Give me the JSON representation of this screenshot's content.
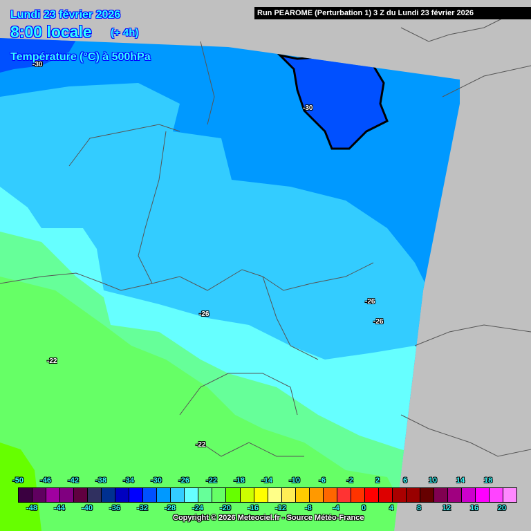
{
  "header": {
    "date": "Lundi 23 février 2026",
    "time": "8:00 locale",
    "offset": "(+ 4h)",
    "parameter": "Température (°C) à 500hPa",
    "run": "Run PEAROME (Perturbation 1) 3 Z du Lundi 23 février 2026"
  },
  "contour_labels": [
    "-30",
    "-30",
    "-26",
    "-26",
    "-26",
    "-22",
    "-22"
  ],
  "legend": {
    "values": [
      -50,
      -48,
      -46,
      -44,
      -42,
      -40,
      -38,
      -36,
      -34,
      -32,
      -30,
      -28,
      -26,
      -24,
      -22,
      -20,
      -18,
      -16,
      -14,
      -12,
      -10,
      -8,
      -6,
      -4,
      -2,
      0,
      2,
      4,
      6,
      8,
      10,
      12,
      14,
      16,
      18,
      20
    ],
    "colors": [
      "#3a0040",
      "#600060",
      "#a000a0",
      "#800080",
      "#600040",
      "#303060",
      "#003090",
      "#0000c0",
      "#0000ff",
      "#0050ff",
      "#0099ff",
      "#33ccff",
      "#66ffff",
      "#66ff99",
      "#66ff66",
      "#66ff00",
      "#ccff00",
      "#ffff00",
      "#ffff88",
      "#ffee55",
      "#ffcc00",
      "#ff9900",
      "#ff6600",
      "#ff3333",
      "#ff3300",
      "#ff0000",
      "#dd0000",
      "#aa0000",
      "#990000",
      "#660000",
      "#800050",
      "#a00080",
      "#cc00cc",
      "#ff00ff",
      "#ff44ff",
      "#ff88ff"
    ],
    "top_labels": [
      "-50",
      "-46",
      "-42",
      "-38",
      "-34",
      "-30",
      "-26",
      "-22",
      "-18",
      "-14",
      "-10",
      "-6",
      "-2",
      "2",
      "6",
      "10",
      "14",
      "18"
    ],
    "bottom_labels": [
      "-48",
      "-44",
      "-40",
      "-36",
      "-32",
      "-28",
      "-24",
      "-20",
      "-16",
      "-12",
      "-8",
      "-4",
      "0",
      "4",
      "8",
      "12",
      "16",
      "20"
    ]
  },
  "copyright": "Copyright © 2026 Meteociel.fr - Source Météo-France",
  "colors": {
    "background": "#c0c0c0",
    "title_text": "#33ffff",
    "title_outline": "#0000ff"
  }
}
